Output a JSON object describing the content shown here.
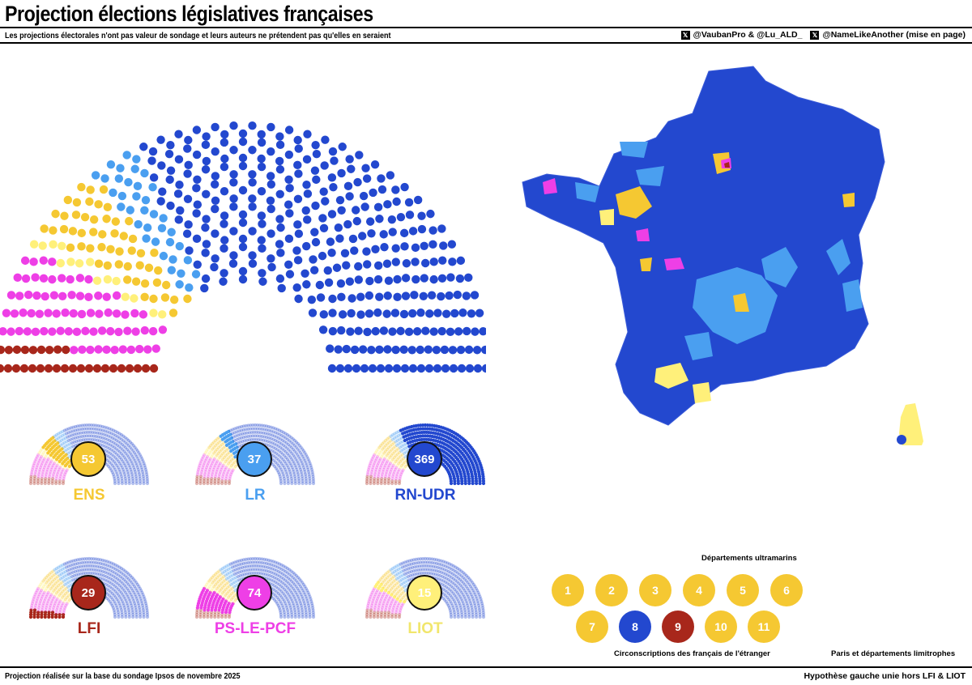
{
  "header": {
    "title": "Projection élections législatives françaises",
    "subtitle": "Les projections électorales n'ont pas valeur de sondage et leurs auteurs ne prétendent pas qu'elles en seraient",
    "credit_1": "@VaubanPro & @Lu_ALD_",
    "credit_2": "@NameLikeAnother (mise en page)",
    "x_icon_glyph": "𝕏"
  },
  "footer": {
    "left": "Projection réalisée sur la base du sondage Ipsos de novembre 2025",
    "right": "Hypothèse gauche unie hors LFI & LIOT"
  },
  "colors": {
    "LFI": "#a8271b",
    "PS-LE-PCF": "#ee3fe6",
    "LIOT": "#fff07a",
    "ENS": "#f5c832",
    "LR": "#4a9ff0",
    "RN-UDR": "#2348cf",
    "faded": "#c9d6ef"
  },
  "chart_data": {
    "type": "hemicycle",
    "total_seats": 577,
    "seat_order": [
      "LFI",
      "PS-LE-PCF",
      "LIOT",
      "ENS",
      "LR",
      "RN-UDR"
    ],
    "parties": [
      {
        "name": "ENS",
        "seats": 53
      },
      {
        "name": "LR",
        "seats": 37
      },
      {
        "name": "RN-UDR",
        "seats": 369
      },
      {
        "name": "LFI",
        "seats": 29
      },
      {
        "name": "PS-LE-PCF",
        "seats": 74
      },
      {
        "name": "LIOT",
        "seats": 15
      }
    ]
  },
  "map": {
    "overseas_label": "Départements ultramarins",
    "paris_label": "Paris et départements limitrophes",
    "abroad_label": "Circonscriptions des français de l'étranger",
    "abroad_circonscriptions": [
      {
        "number": "1",
        "party": "ENS"
      },
      {
        "number": "2",
        "party": "ENS"
      },
      {
        "number": "3",
        "party": "ENS"
      },
      {
        "number": "4",
        "party": "ENS"
      },
      {
        "number": "5",
        "party": "ENS"
      },
      {
        "number": "6",
        "party": "ENS"
      },
      {
        "number": "7",
        "party": "ENS"
      },
      {
        "number": "8",
        "party": "RN-UDR"
      },
      {
        "number": "9",
        "party": "LFI"
      },
      {
        "number": "10",
        "party": "ENS"
      },
      {
        "number": "11",
        "party": "ENS"
      }
    ]
  }
}
